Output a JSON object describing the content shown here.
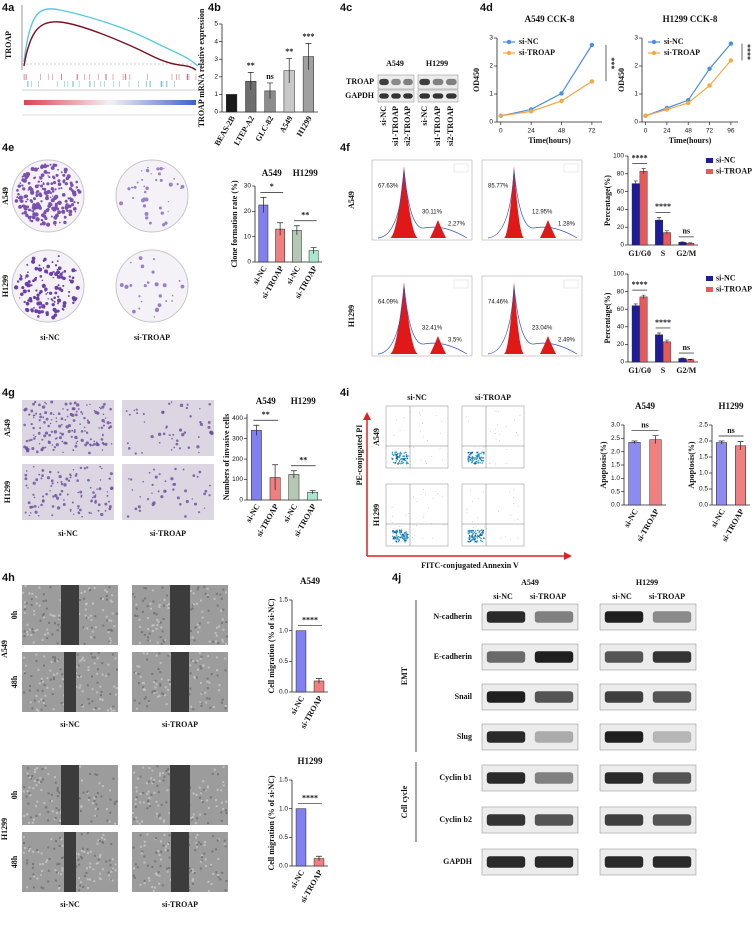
{
  "panels": [
    "4a",
    "4b",
    "4c",
    "4d",
    "4e",
    "4f",
    "4g",
    "4i",
    "4h",
    "4j"
  ],
  "gsea": {
    "gene": "TROAP"
  },
  "blot_4c": {
    "cell_lines": [
      "A549",
      "H1299"
    ],
    "lanes": [
      "si-NC",
      "si1-TROAP",
      "si2-TROAP",
      "si-NC",
      "si1-TROAP",
      "si2-TROAP"
    ],
    "proteins": [
      "TROAP",
      "GAPDH"
    ]
  },
  "colony_4e": {
    "cell_lines": [
      "A549",
      "H1299"
    ],
    "groups": [
      "si-NC",
      "si-TROAP"
    ]
  },
  "flow_4f": {
    "cell_lines": [
      "A549",
      "H1299"
    ],
    "fractions": [
      [
        "67.63%",
        "30.11%",
        "2.27%"
      ],
      [
        "85.77%",
        "12.95%",
        "1.28%"
      ],
      [
        "64.09%",
        "32.41%",
        "3.5%"
      ],
      [
        "74.46%",
        "23.04%",
        "2.49%"
      ]
    ]
  },
  "invasion_4g": {
    "cell_lines": [
      "A549",
      "H1299"
    ],
    "groups": [
      "si-NC",
      "si-TROAP"
    ]
  },
  "apoptosis_4i": {
    "cell_lines": [
      "A549",
      "H1299"
    ],
    "groups": [
      "si-NC",
      "si-TROAP"
    ],
    "y_axis": "PE-conjugated PI",
    "x_axis": "FITC-conjugated Annexin V"
  },
  "wound_4h": {
    "cell_lines": [
      "A549",
      "H1299"
    ],
    "times": [
      "0h",
      "48h"
    ],
    "groups": [
      "si-NC",
      "si-TROAP"
    ]
  },
  "blot_4j": {
    "cell_lines": [
      "A549",
      "H1299"
    ],
    "lanes": [
      "si-NC",
      "si-TROAP",
      "si-NC",
      "si-TROAP"
    ],
    "proteins": [
      "N-cadherin",
      "E-cadherin",
      "Snail",
      "Slug",
      "Cyclin b1",
      "Cyclin b2",
      "GAPDH"
    ],
    "groups": [
      "EMT",
      "Cell cycle"
    ]
  },
  "chart_data": [
    {
      "type": "bar",
      "y_label": "TROAP mRNA relative expression",
      "categories": [
        "BEAS-2B",
        "LTEP-A2",
        "GLC-82",
        "A549",
        "H1299"
      ],
      "values": [
        1,
        1.75,
        1.2,
        2.35,
        3.15
      ],
      "errors": [
        null,
        0.5,
        0.45,
        0.7,
        0.75
      ],
      "colors": [
        "#1a1a1a",
        "#6e6e6e",
        "#8c8c8c",
        "#c8c8c8",
        "#a0a0a0"
      ],
      "ylim": [
        0,
        5
      ],
      "yticks": [
        0,
        1,
        2,
        3,
        4,
        5
      ],
      "significance": [
        null,
        "**",
        "ns",
        "**",
        "***"
      ]
    },
    {
      "type": "line",
      "title": "A549 CCK-8",
      "x_label": "Time(hours)",
      "y_label": "OD450",
      "x": [
        0,
        24,
        48,
        72
      ],
      "xlim": [
        -3,
        80
      ],
      "xticks": [
        0,
        24,
        48,
        72
      ],
      "ylim": [
        0,
        3
      ],
      "yticks": [
        0,
        1,
        2,
        3
      ],
      "series": [
        {
          "name": "si-NC",
          "color": "#4a90e2",
          "values": [
            0.22,
            0.45,
            1.02,
            2.75
          ]
        },
        {
          "name": "si-TROAP",
          "color": "#f5a742",
          "values": [
            0.22,
            0.38,
            0.75,
            1.45
          ]
        }
      ],
      "significance": [
        "***"
      ]
    },
    {
      "type": "line",
      "title": "H1299 CCK-8",
      "x_label": "Time(hours)",
      "y_label": "OD450",
      "x": [
        0,
        24,
        48,
        72,
        96
      ],
      "xlim": [
        -4,
        104
      ],
      "xticks": [
        0,
        24,
        48,
        72,
        96
      ],
      "ylim": [
        0,
        3
      ],
      "yticks": [
        0,
        1,
        2,
        3
      ],
      "series": [
        {
          "name": "si-NC",
          "color": "#4a90e2",
          "values": [
            0.22,
            0.5,
            0.78,
            1.9,
            2.8
          ]
        },
        {
          "name": "si-TROAP",
          "color": "#f5a742",
          "values": [
            0.22,
            0.45,
            0.68,
            1.3,
            2.2
          ]
        }
      ],
      "significance": [
        "****"
      ]
    },
    {
      "type": "bar",
      "y_label": "Clone formation rate (%)",
      "groups": [
        "A549",
        "H1299"
      ],
      "categories": [
        "si-NC",
        "si-TROAP",
        "si-NC",
        "si-TROAP"
      ],
      "values": [
        22.5,
        13,
        12.5,
        4.5
      ],
      "errors": [
        3,
        2.5,
        1.8,
        1.2
      ],
      "colors": [
        "#8080f0",
        "#f08080",
        "#b4c8b4",
        "#a8e6d0"
      ],
      "ylim": [
        0,
        30
      ],
      "yticks": [
        0,
        10,
        20,
        30
      ],
      "significance": [
        "*",
        "**"
      ]
    },
    {
      "type": "grouped_bar",
      "y_label": "Percentage(%)",
      "categories": [
        "G1/G0",
        "S",
        "G2/M"
      ],
      "series": [
        {
          "name": "si-NC",
          "color": "#1c1c9c",
          "values": [
            69,
            28,
            3
          ],
          "errors": [
            3,
            3,
            0.5
          ]
        },
        {
          "name": "si-TROAP",
          "color": "#e85a5a",
          "values": [
            83,
            14,
            2
          ],
          "errors": [
            3,
            2,
            0.5
          ]
        }
      ],
      "ylim": [
        0,
        100
      ],
      "yticks": [
        0,
        20,
        40,
        60,
        80,
        100
      ],
      "significance": [
        "****",
        "****",
        "ns"
      ]
    },
    {
      "type": "grouped_bar",
      "y_label": "Percentage(%)",
      "categories": [
        "G1/G0",
        "S",
        "G2/M"
      ],
      "series": [
        {
          "name": "si-NC",
          "color": "#1c1c9c",
          "values": [
            64,
            31,
            4
          ],
          "errors": [
            2,
            2,
            0.5
          ]
        },
        {
          "name": "si-TROAP",
          "color": "#e85a5a",
          "values": [
            74,
            23,
            2.5
          ],
          "errors": [
            2,
            2,
            0.5
          ]
        }
      ],
      "ylim": [
        0,
        100
      ],
      "yticks": [
        0,
        20,
        40,
        60,
        80,
        100
      ],
      "significance": [
        "****",
        "****",
        "ns"
      ]
    },
    {
      "type": "bar",
      "y_label": "Numbers of invasive cells",
      "groups": [
        "A549",
        "H1299"
      ],
      "categories": [
        "si-NC",
        "si-TROAP",
        "si-NC",
        "si-TROAP"
      ],
      "values": [
        340,
        110,
        125,
        38
      ],
      "errors": [
        25,
        62,
        18,
        8
      ],
      "colors": [
        "#8080f0",
        "#f08080",
        "#b4c8b4",
        "#a8e6d0"
      ],
      "ylim": [
        0,
        420
      ],
      "yticks": [
        0,
        100,
        200,
        300,
        400
      ],
      "significance": [
        "**",
        "**"
      ]
    },
    {
      "type": "bar",
      "title": "A549",
      "y_label": "Apoptosis(%)",
      "categories": [
        "si-NC",
        "si-TROAP"
      ],
      "values": [
        2.35,
        2.45
      ],
      "errors": [
        0.05,
        0.15
      ],
      "colors": [
        "#8c8cf0",
        "#f08080"
      ],
      "ylim": [
        0,
        3
      ],
      "yticks": [
        {
          "value": 0,
          "label": "0.0"
        },
        0.5,
        {
          "value": 1,
          "label": "1.0"
        },
        1.5,
        {
          "value": 2,
          "label": "2.0"
        },
        2.5,
        {
          "value": 3,
          "label": "3.0"
        }
      ],
      "significance": [
        "ns"
      ]
    },
    {
      "type": "bar",
      "title": "H1299",
      "y_label": "Apoptosis(%)",
      "categories": [
        "si-NC",
        "si-TROAP"
      ],
      "values": [
        1.95,
        1.85
      ],
      "errors": [
        0.05,
        0.13
      ],
      "colors": [
        "#8c8cf0",
        "#f08080"
      ],
      "ylim": [
        0,
        2.5
      ],
      "yticks": [
        {
          "value": 0,
          "label": "0.0"
        },
        0.5,
        {
          "value": 1,
          "label": "1.0"
        },
        1.5,
        {
          "value": 2,
          "label": "2.0"
        },
        2.5
      ],
      "significance": [
        "ns"
      ]
    },
    {
      "type": "bar",
      "title": "A549",
      "y_label": "Cell migration (% of si-NC)",
      "categories": [
        "si-NC",
        "si-TROAP"
      ],
      "values": [
        1,
        0.18
      ],
      "errors": [
        null,
        0.04
      ],
      "colors": [
        "#8080f0",
        "#f08080"
      ],
      "ylim": [
        0,
        1.5
      ],
      "yticks": [
        {
          "value": 0,
          "label": "0.0"
        },
        0.5,
        {
          "value": 1,
          "label": "1.0"
        },
        1.5
      ],
      "significance": [
        "****"
      ]
    },
    {
      "type": "bar",
      "title": "H1299",
      "y_label": "Cell migration (% of si-NC)",
      "categories": [
        "si-NC",
        "si-TROAP"
      ],
      "values": [
        1,
        0.13
      ],
      "errors": [
        null,
        0.04
      ],
      "colors": [
        "#8080f0",
        "#f08080"
      ],
      "ylim": [
        0,
        1.5
      ],
      "yticks": [
        {
          "value": 0,
          "label": "0.0"
        },
        0.5,
        {
          "value": 1,
          "label": "1.0"
        },
        1.5
      ],
      "significance": [
        "****"
      ]
    }
  ]
}
